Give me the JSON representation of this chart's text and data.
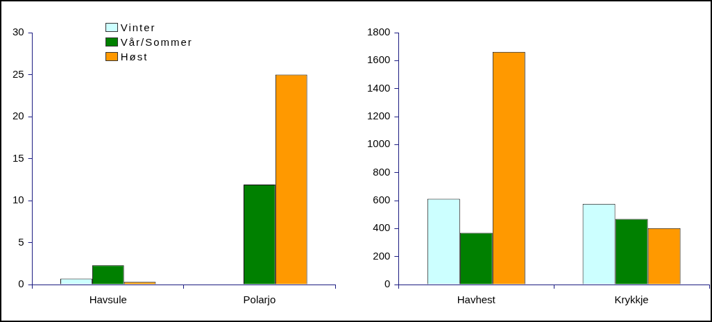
{
  "chart_data": [
    {
      "type": "bar",
      "categories": [
        "Havsule",
        "Polarjo"
      ],
      "series": [
        {
          "name": "Vinter",
          "color": "#ccffff",
          "values": [
            0.7,
            0
          ]
        },
        {
          "name": "Vår/Sommer",
          "color": "#008000",
          "values": [
            2.3,
            11.9
          ]
        },
        {
          "name": "Høst",
          "color": "#ff9900",
          "values": [
            0.3,
            25
          ]
        }
      ],
      "ylim": [
        0,
        30
      ],
      "yticks": [
        0,
        5,
        10,
        15,
        20,
        25,
        30
      ],
      "grid": false,
      "legend": "top left"
    },
    {
      "type": "bar",
      "categories": [
        "Havhest",
        "Krykkje"
      ],
      "series": [
        {
          "color": "#ccffff",
          "values": [
            613,
            577
          ]
        },
        {
          "color": "#008000",
          "values": [
            369,
            468
          ]
        },
        {
          "color": "#ff9900",
          "values": [
            1662,
            403
          ]
        }
      ],
      "ylim": [
        0,
        1800
      ],
      "yticks": [
        0,
        200,
        400,
        600,
        800,
        1000,
        1200,
        1400,
        1600,
        1800
      ],
      "grid": false,
      "legend": false
    }
  ]
}
